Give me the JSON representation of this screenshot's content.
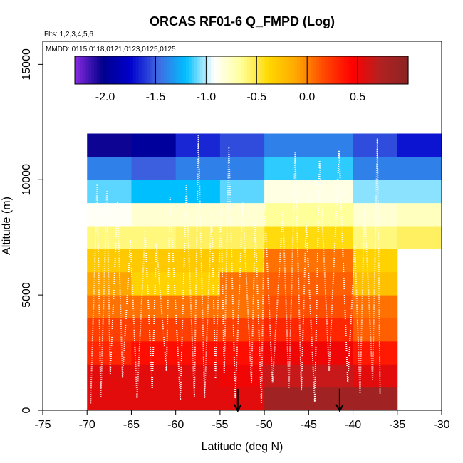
{
  "chart_data": {
    "type": "heatmap",
    "title": "ORCAS RF01-6 Q_FMPD (Log)",
    "flights_note": "Flts: 1,2,3,4,5,6",
    "dates_note": "MMDD: 0115,0118,0121,0123,0125,0125",
    "xlabel": "Latitude (deg N)",
    "ylabel": "Altitude (m)",
    "xlim": [
      -75,
      -30
    ],
    "ylim": [
      0,
      16000
    ],
    "x_ticks": [
      -75,
      -70,
      -65,
      -60,
      -55,
      -50,
      -45,
      -40,
      -35,
      -30
    ],
    "x_tick_labels": [
      "-75",
      "-70",
      "-65",
      "-60",
      "-55",
      "-50",
      "-45",
      "-40",
      "-35",
      "-30"
    ],
    "y_ticks": [
      0,
      5000,
      10000,
      15000
    ],
    "y_tick_labels": [
      "0",
      "5000",
      "10000",
      "15000"
    ],
    "colorbar": {
      "range": [
        -2.3,
        1.0
      ],
      "ticks": [
        -2.0,
        -1.5,
        -1.0,
        -0.5,
        0.0,
        0.5
      ],
      "tick_labels": [
        "-2.0",
        "-1.5",
        "-1.0",
        "-0.5",
        "0.0",
        "0.5"
      ],
      "colors": [
        "#8a2be2",
        "#00008b",
        "#0000cd",
        "#4169e1",
        "#00bfff",
        "#ffffff",
        "#ffff99",
        "#ffd700",
        "#ffa500",
        "#ff4500",
        "#ff0000",
        "#b22222",
        "#8b2323"
      ]
    },
    "grid": {
      "x_edges": [
        -70,
        -65,
        -60,
        -55,
        -50,
        -45,
        -40,
        -35,
        -30
      ],
      "y_edges": [
        0,
        1000,
        2000,
        3000,
        4000,
        5000,
        6000,
        7000,
        8000,
        9000,
        10000,
        11000,
        12000
      ],
      "values": [
        [
          0.55,
          0.55,
          0.55,
          0.55,
          0.85,
          0.85,
          0.85,
          null
        ],
        [
          0.55,
          0.55,
          0.55,
          0.5,
          0.65,
          0.65,
          0.55,
          null
        ],
        [
          0.3,
          0.4,
          0.4,
          0.4,
          0.5,
          0.5,
          0.35,
          null
        ],
        [
          0.2,
          0.2,
          0.2,
          0.2,
          0.3,
          0.3,
          0.1,
          null
        ],
        [
          0.05,
          0.05,
          0.05,
          0.05,
          0.15,
          0.15,
          0.05,
          null
        ],
        [
          -0.1,
          -0.35,
          -0.35,
          0.05,
          0.1,
          0.1,
          -0.25,
          null
        ],
        [
          -0.3,
          -0.3,
          -0.3,
          -0.35,
          0.05,
          0.05,
          -0.35,
          null
        ],
        [
          -0.6,
          -0.6,
          -0.55,
          -0.55,
          -0.4,
          -0.4,
          -0.6,
          -0.55
        ],
        [
          -0.9,
          -0.8,
          -0.8,
          -0.8,
          -0.65,
          -0.65,
          -0.8,
          -0.75
        ],
        [
          -1.1,
          -1.2,
          -1.2,
          -1.1,
          -0.85,
          -0.85,
          -1.05,
          -1.05
        ],
        [
          -1.4,
          -1.5,
          -1.4,
          -1.4,
          -1.15,
          -1.15,
          -1.4,
          -1.4
        ],
        [
          -2.05,
          -1.95,
          -1.65,
          -1.55,
          -1.4,
          -1.4,
          -1.55,
          -1.7
        ]
      ]
    },
    "markers": [
      {
        "type": "arrow-down",
        "x": -53,
        "y": 500
      },
      {
        "type": "arrow-down",
        "x": -41.5,
        "y": 500
      }
    ]
  }
}
